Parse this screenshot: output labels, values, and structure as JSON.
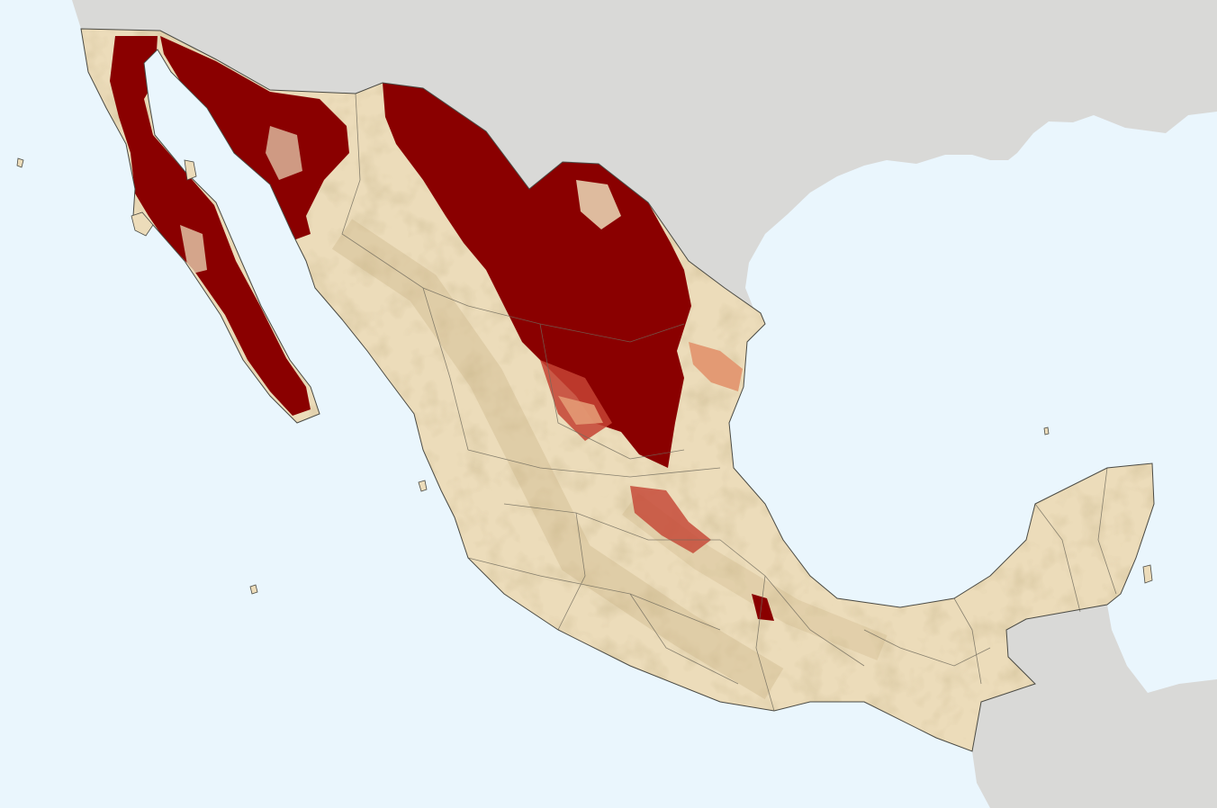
{
  "map": {
    "labels": [],
    "colors": {
      "ocean": "#eaf6fd",
      "neighbor_land": "#d9d9d7",
      "mexico_land": "#ecdcba",
      "relief_shadow": "#cdb88c",
      "state_border": "#6f6a5c",
      "coastline": "#4a4a44",
      "class_high": "#8a0000",
      "class_medium": "#c44232",
      "class_low": "#e39a74"
    },
    "layers": [
      "ocean",
      "neighboring-land",
      "mexico-land",
      "shaded-relief",
      "state-borders",
      "intensity-overlay"
    ]
  }
}
